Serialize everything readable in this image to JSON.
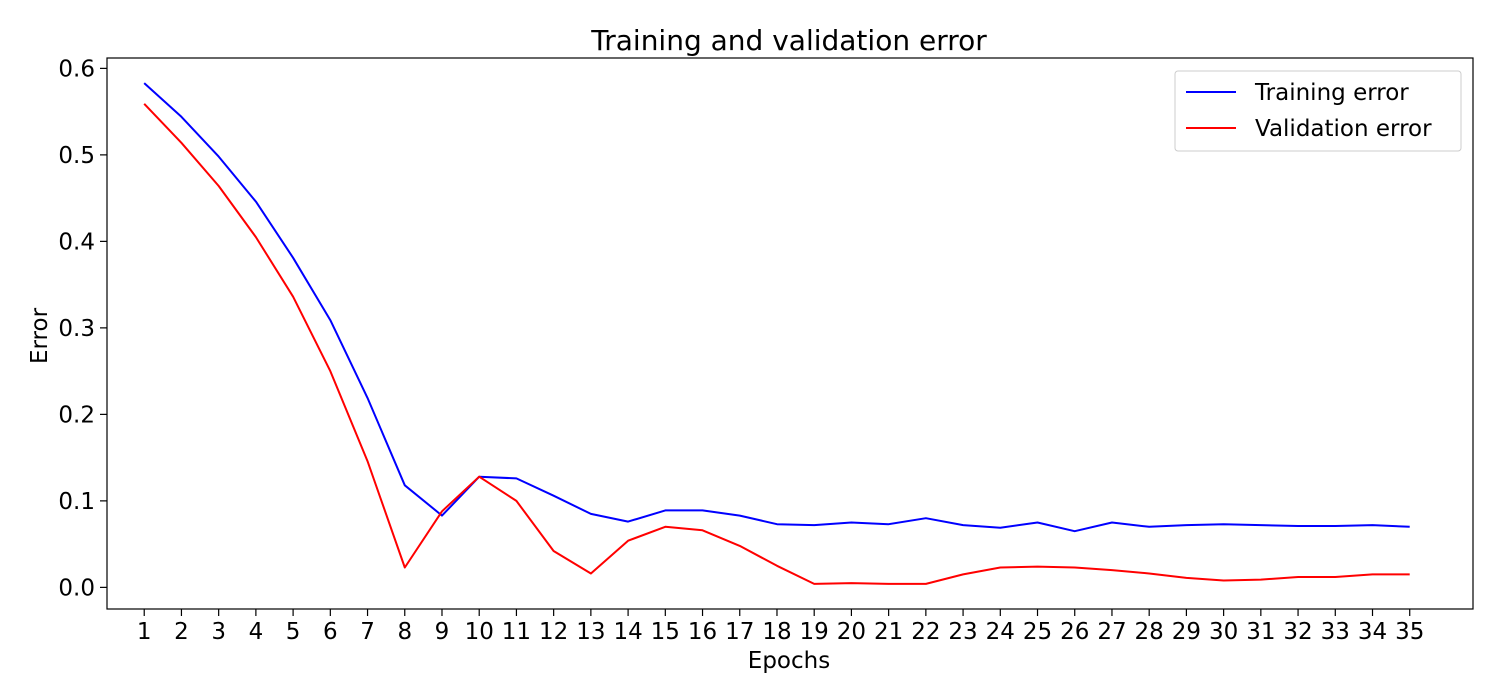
{
  "chart_data": {
    "type": "line",
    "title": "Training and validation error",
    "xlabel": "Epochs",
    "ylabel": "Error",
    "x": [
      1,
      2,
      3,
      4,
      5,
      6,
      7,
      8,
      9,
      10,
      11,
      12,
      13,
      14,
      15,
      16,
      17,
      18,
      19,
      20,
      21,
      22,
      23,
      24,
      25,
      26,
      27,
      28,
      29,
      30,
      31,
      32,
      33,
      34,
      35
    ],
    "xlim": [
      0.0,
      36.7
    ],
    "ylim": [
      -0.025,
      0.612
    ],
    "yticks": [
      0.0,
      0.1,
      0.2,
      0.3,
      0.4,
      0.5,
      0.6
    ],
    "ytick_labels": [
      "0.0",
      "0.1",
      "0.2",
      "0.3",
      "0.4",
      "0.5",
      "0.6"
    ],
    "xtick_labels": [
      "1",
      "2",
      "3",
      "4",
      "5",
      "6",
      "7",
      "8",
      "9",
      "10",
      "11",
      "12",
      "13",
      "14",
      "15",
      "16",
      "17",
      "18",
      "19",
      "20",
      "21",
      "22",
      "23",
      "24",
      "25",
      "26",
      "27",
      "28",
      "29",
      "30",
      "31",
      "32",
      "33",
      "34",
      "35"
    ],
    "grid": false,
    "legend_position": "top-right",
    "series": [
      {
        "name": "Training error",
        "color": "#0000ff",
        "values": [
          0.583,
          0.544,
          0.498,
          0.446,
          0.381,
          0.309,
          0.219,
          0.118,
          0.083,
          0.128,
          0.126,
          0.106,
          0.085,
          0.076,
          0.089,
          0.089,
          0.083,
          0.073,
          0.072,
          0.075,
          0.073,
          0.08,
          0.072,
          0.069,
          0.075,
          0.065,
          0.075,
          0.07,
          0.072,
          0.073,
          0.072,
          0.071,
          0.071,
          0.072,
          0.07
        ]
      },
      {
        "name": "Validation error",
        "color": "#ff0000",
        "values": [
          0.559,
          0.514,
          0.464,
          0.405,
          0.336,
          0.25,
          0.146,
          0.023,
          0.088,
          0.128,
          0.1,
          0.042,
          0.016,
          0.054,
          0.07,
          0.066,
          0.048,
          0.025,
          0.004,
          0.005,
          0.004,
          0.004,
          0.015,
          0.023,
          0.024,
          0.023,
          0.02,
          0.016,
          0.011,
          0.008,
          0.009,
          0.012,
          0.012,
          0.015,
          0.015
        ]
      }
    ]
  }
}
